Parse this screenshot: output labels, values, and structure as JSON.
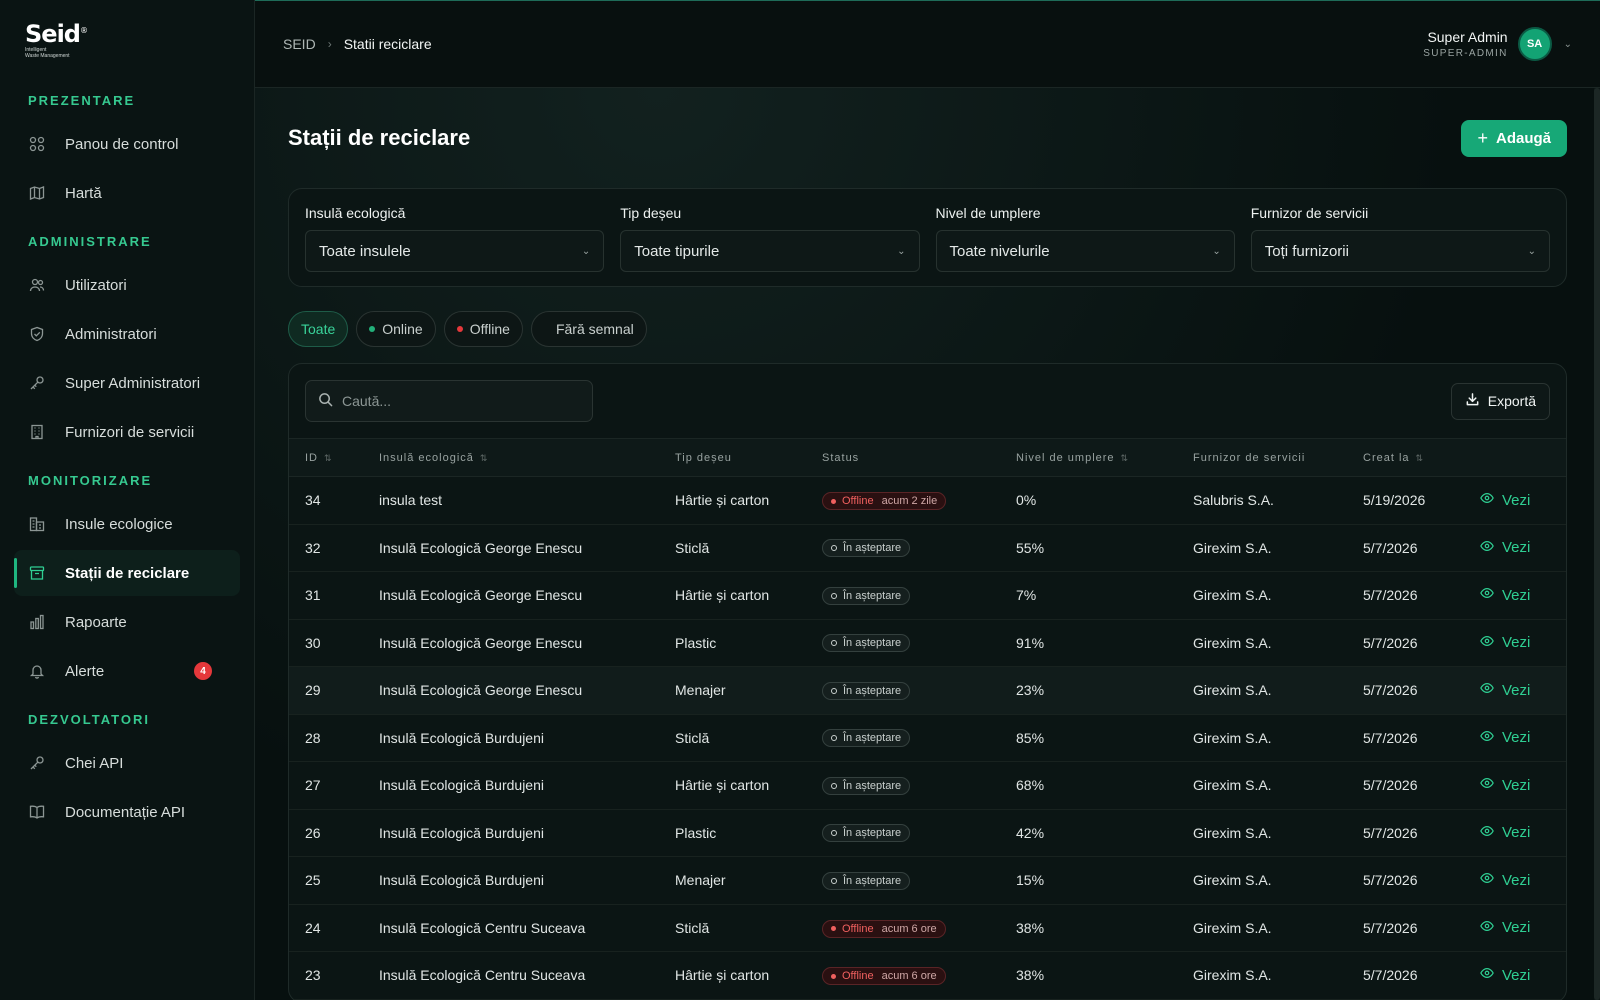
{
  "brand": {
    "word": "Seid",
    "mark": "®",
    "tagline_1": "Intelligent",
    "tagline_2": "Waste Management"
  },
  "sidebar": {
    "sections": [
      {
        "title": "PREZENTARE",
        "items": [
          {
            "label": "Panou de control",
            "icon": "dashboard-icon"
          },
          {
            "label": "Hartă",
            "icon": "map-icon"
          }
        ]
      },
      {
        "title": "ADMINISTRARE",
        "items": [
          {
            "label": "Utilizatori",
            "icon": "users-icon"
          },
          {
            "label": "Administratori",
            "icon": "shield-icon"
          },
          {
            "label": "Super Administratori",
            "icon": "key-icon"
          },
          {
            "label": "Furnizori de servicii",
            "icon": "building-icon"
          }
        ]
      },
      {
        "title": "MONITORIZARE",
        "items": [
          {
            "label": "Insule ecologice",
            "icon": "islands-icon"
          },
          {
            "label": "Stații de reciclare",
            "icon": "recycle-bin-icon",
            "active": true
          },
          {
            "label": "Rapoarte",
            "icon": "bar-chart-icon"
          },
          {
            "label": "Alerte",
            "icon": "bell-icon",
            "badge": "4"
          }
        ]
      },
      {
        "title": "DEZVOLTATORI",
        "items": [
          {
            "label": "Chei API",
            "icon": "key-icon"
          },
          {
            "label": "Documentație API",
            "icon": "book-icon"
          }
        ]
      }
    ]
  },
  "header": {
    "breadcrumb_root": "SEID",
    "breadcrumb_current": "Statii reciclare",
    "user_name": "Super Admin",
    "user_role": "SUPER-ADMIN",
    "avatar_initials": "SA"
  },
  "page": {
    "title": "Stații de reciclare",
    "add_label": "Adaugă"
  },
  "filters": [
    {
      "label": "Insulă ecologică",
      "value": "Toate insulele"
    },
    {
      "label": "Tip deșeu",
      "value": "Toate tipurile"
    },
    {
      "label": "Nivel de umplere",
      "value": "Toate nivelurile"
    },
    {
      "label": "Furnizor de servicii",
      "value": "Toți furnizorii"
    }
  ],
  "chips": [
    {
      "label": "Toate",
      "active": true
    },
    {
      "label": "Online",
      "dot": "#22b07a"
    },
    {
      "label": "Offline",
      "dot": "#e5383b"
    },
    {
      "label": "Fără semnal"
    }
  ],
  "table": {
    "search_placeholder": "Caută...",
    "export_label": "Exportă",
    "columns": [
      "ID",
      "Insulă ecologică",
      "Tip deșeu",
      "Status",
      "Nivel de umplere",
      "Furnizor de servicii",
      "Creat la",
      ""
    ],
    "view_label": "Vezi",
    "rows": [
      {
        "id": "34",
        "island": "insula test",
        "type": "Hârtie și carton",
        "status": "Offline",
        "ago": "acum 2 zile",
        "fill": "0%",
        "provider": "Salubris S.A.",
        "created": "5/19/2026"
      },
      {
        "id": "32",
        "island": "Insulă Ecologică George Enescu",
        "type": "Sticlă",
        "status": "În așteptare",
        "fill": "55%",
        "provider": "Girexim S.A.",
        "created": "5/7/2026"
      },
      {
        "id": "31",
        "island": "Insulă Ecologică George Enescu",
        "type": "Hârtie și carton",
        "status": "În așteptare",
        "fill": "7%",
        "provider": "Girexim S.A.",
        "created": "5/7/2026"
      },
      {
        "id": "30",
        "island": "Insulă Ecologică George Enescu",
        "type": "Plastic",
        "status": "În așteptare",
        "fill": "91%",
        "provider": "Girexim S.A.",
        "created": "5/7/2026"
      },
      {
        "id": "29",
        "island": "Insulă Ecologică George Enescu",
        "type": "Menajer",
        "status": "În așteptare",
        "fill": "23%",
        "provider": "Girexim S.A.",
        "created": "5/7/2026",
        "highlight": true
      },
      {
        "id": "28",
        "island": "Insulă Ecologică Burdujeni",
        "type": "Sticlă",
        "status": "În așteptare",
        "fill": "85%",
        "provider": "Girexim S.A.",
        "created": "5/7/2026"
      },
      {
        "id": "27",
        "island": "Insulă Ecologică Burdujeni",
        "type": "Hârtie și carton",
        "status": "În așteptare",
        "fill": "68%",
        "provider": "Girexim S.A.",
        "created": "5/7/2026"
      },
      {
        "id": "26",
        "island": "Insulă Ecologică Burdujeni",
        "type": "Plastic",
        "status": "În așteptare",
        "fill": "42%",
        "provider": "Girexim S.A.",
        "created": "5/7/2026"
      },
      {
        "id": "25",
        "island": "Insulă Ecologică Burdujeni",
        "type": "Menajer",
        "status": "În așteptare",
        "fill": "15%",
        "provider": "Girexim S.A.",
        "created": "5/7/2026"
      },
      {
        "id": "24",
        "island": "Insulă Ecologică Centru Suceava",
        "type": "Sticlă",
        "status": "Offline",
        "ago": "acum 6 ore",
        "fill": "38%",
        "provider": "Girexim S.A.",
        "created": "5/7/2026"
      },
      {
        "id": "23",
        "island": "Insulă Ecologică Centru Suceava",
        "type": "Hârtie și carton",
        "status": "Offline",
        "ago": "acum 6 ore",
        "fill": "38%",
        "provider": "Girexim S.A.",
        "created": "5/7/2026"
      }
    ]
  },
  "colors": {
    "accent": "#17a877",
    "accent_text": "#2fcf93",
    "danger": "#e5383b"
  }
}
